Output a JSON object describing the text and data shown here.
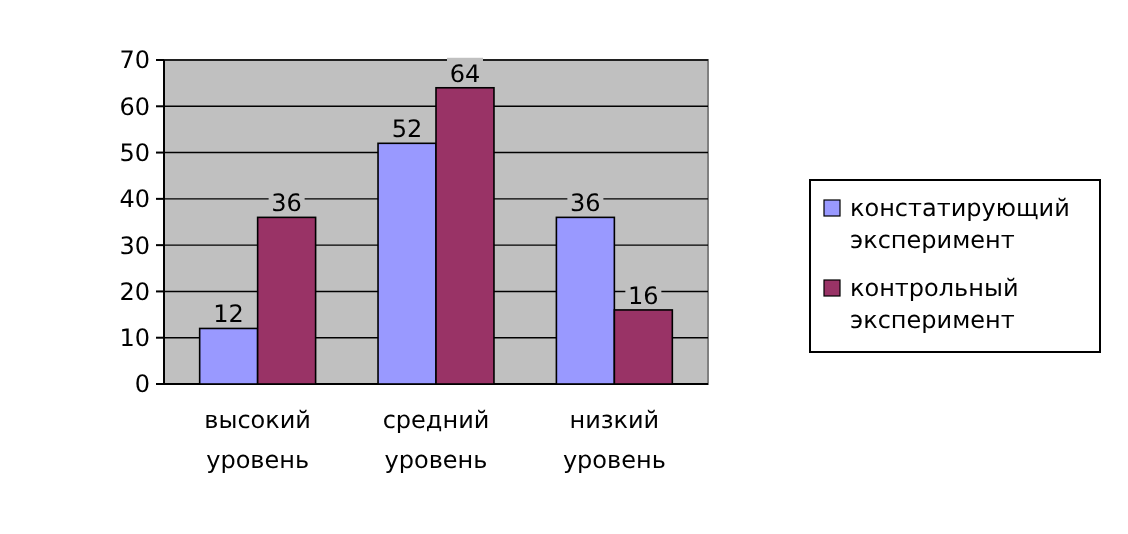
{
  "chart_data": {
    "type": "bar",
    "categories": [
      "высокий уровень",
      "средний уровень",
      "низкий уровень"
    ],
    "series": [
      {
        "name": "констатирующий эксперимент",
        "color": "#9999ff",
        "values": [
          12,
          52,
          36
        ]
      },
      {
        "name": "контрольный эксперимент",
        "color": "#993366",
        "values": [
          36,
          64,
          16
        ]
      }
    ],
    "ylim": [
      0,
      70
    ],
    "yticks": [
      0,
      10,
      20,
      30,
      40,
      50,
      60,
      70
    ],
    "grid": "y",
    "legend": "right",
    "data_labels": true
  }
}
